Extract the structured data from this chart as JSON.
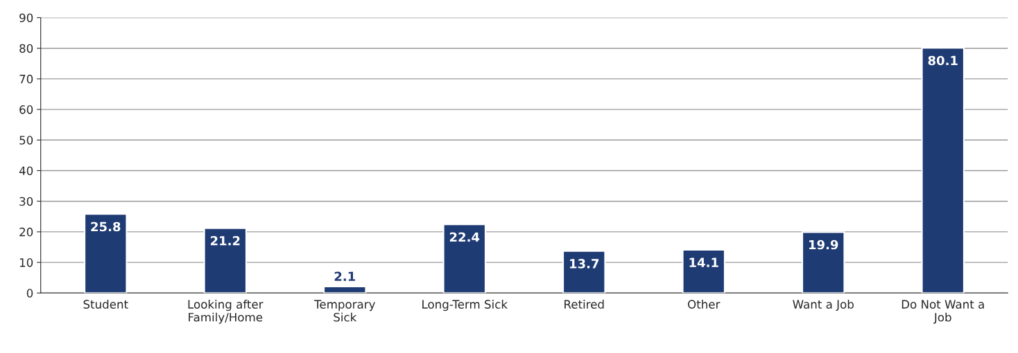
{
  "chart_data": {
    "type": "bar",
    "categories": [
      "Student",
      "Looking after\nFamily/Home",
      "Temporary\nSick",
      "Long-Term Sick",
      "Retired",
      "Other",
      "Want a Job",
      "Do Not Want a\nJob"
    ],
    "values": [
      25.8,
      21.2,
      2.1,
      22.4,
      13.7,
      14.1,
      19.9,
      80.1
    ],
    "color": "#1f3b73",
    "ylim": [
      0,
      90
    ],
    "yticks": [
      0,
      10,
      20,
      30,
      40,
      50,
      60,
      70,
      80,
      90
    ],
    "grid": "y",
    "data_labels": true
  }
}
